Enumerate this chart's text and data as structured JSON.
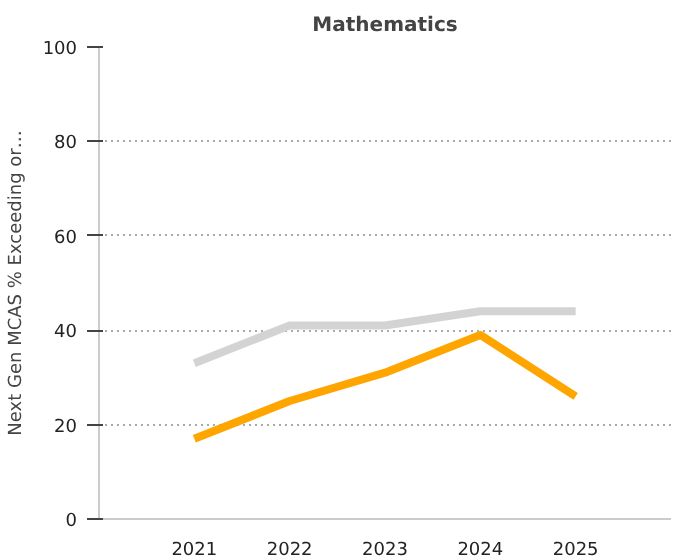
{
  "chart_data": {
    "type": "line",
    "title": "Mathematics",
    "ylabel": "Next Gen MCAS % Exceeding or…",
    "categories": [
      "2021",
      "2022",
      "2023",
      "2024",
      "2025"
    ],
    "series": [
      {
        "color": "#d3d3d3",
        "values": [
          33,
          41,
          41,
          44,
          44
        ]
      },
      {
        "color": "#ffa500",
        "values": [
          17,
          25,
          31,
          39,
          26
        ]
      }
    ],
    "ylim": [
      0,
      100
    ],
    "yticks": [
      0,
      20,
      40,
      60,
      80,
      100
    ],
    "grid": "y",
    "marker": "none",
    "line_style": "solid"
  }
}
